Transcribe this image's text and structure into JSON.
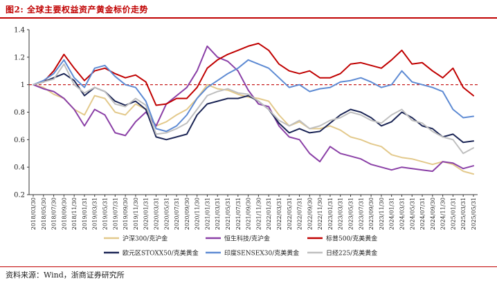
{
  "figure": {
    "title": "图2:  全球主要权益资产黄金标价走势",
    "source": "资料来源：Wind，浙商证券研究所"
  },
  "chart_data": {
    "type": "line",
    "title": "",
    "xlabel": "",
    "ylabel": "",
    "ylim": [
      0.2,
      1.4
    ],
    "yticks": [
      "0.2",
      "0.4",
      "0.6",
      "0.8",
      "1",
      "1.2",
      "1.4"
    ],
    "reference_line": {
      "y": 1.0,
      "style": "dashed",
      "color": "#c00000"
    },
    "grid": false,
    "legend_position": "bottom",
    "x": [
      "2018/03/30",
      "2018/05/30",
      "2018/07/30",
      "2018/09/30",
      "2018/11/30",
      "2019/01/31",
      "2019/03/31",
      "2019/05/31",
      "2019/07/31",
      "2019/09/30",
      "2019/11/30",
      "2020/01/31",
      "2020/03/31",
      "2020/05/31",
      "2020/07/31",
      "2020/09/30",
      "2020/11/30",
      "2021/01/31",
      "2021/03/31",
      "2021/05/31",
      "2021/07/31",
      "2021/09/30",
      "2021/11/30",
      "2022/01/31",
      "2022/03/31",
      "2022/05/31",
      "2022/07/31",
      "2022/09/30",
      "2022/11/30",
      "2023/01/31",
      "2023/03/31",
      "2023/05/31",
      "2023/07/31",
      "2023/09/30",
      "2023/11/30",
      "2024/01/31",
      "2024/03/31",
      "2024/05/31",
      "2024/07/31",
      "2024/09/30",
      "2024/11/30",
      "2025/01/31",
      "2025/03/31",
      "2025/05/31"
    ],
    "series": [
      {
        "name": "沪深300/克沪金",
        "color": "#e3c98b",
        "values": [
          1.0,
          0.98,
          0.93,
          0.9,
          0.82,
          0.78,
          0.92,
          0.9,
          0.8,
          0.78,
          0.86,
          0.82,
          0.7,
          0.73,
          0.78,
          0.82,
          0.9,
          1.0,
          0.97,
          0.96,
          0.93,
          0.91,
          0.9,
          0.88,
          0.78,
          0.7,
          0.73,
          0.68,
          0.68,
          0.7,
          0.67,
          0.62,
          0.6,
          0.57,
          0.55,
          0.49,
          0.47,
          0.46,
          0.44,
          0.42,
          0.44,
          0.42,
          0.37,
          0.35
        ]
      },
      {
        "name": "恒生科技/克沪金",
        "color": "#8a3fa6",
        "values": [
          1.0,
          0.97,
          0.95,
          0.9,
          0.82,
          0.7,
          0.82,
          0.78,
          0.65,
          0.63,
          0.73,
          0.8,
          0.7,
          0.86,
          0.92,
          0.98,
          1.1,
          1.28,
          1.2,
          1.17,
          1.1,
          0.96,
          0.86,
          0.84,
          0.7,
          0.62,
          0.6,
          0.5,
          0.44,
          0.55,
          0.5,
          0.48,
          0.46,
          0.42,
          0.4,
          0.38,
          0.4,
          0.39,
          0.38,
          0.37,
          0.44,
          0.43,
          0.39,
          0.41
        ]
      },
      {
        "name": "标普500/克美黄金",
        "color": "#c00000",
        "values": [
          1.0,
          1.02,
          1.1,
          1.22,
          1.12,
          1.03,
          1.1,
          1.12,
          1.08,
          1.05,
          1.07,
          1.02,
          0.85,
          0.86,
          0.9,
          0.9,
          0.98,
          1.12,
          1.18,
          1.22,
          1.25,
          1.28,
          1.3,
          1.25,
          1.15,
          1.1,
          1.08,
          1.1,
          1.05,
          1.05,
          1.08,
          1.15,
          1.16,
          1.14,
          1.12,
          1.18,
          1.25,
          1.15,
          1.16,
          1.1,
          1.05,
          1.12,
          0.98,
          0.92
        ]
      },
      {
        "name": "欧元区STOXX50/克美黄金",
        "color": "#1b2555",
        "values": [
          1.0,
          1.02,
          1.05,
          1.08,
          1.03,
          0.92,
          0.98,
          0.95,
          0.88,
          0.85,
          0.88,
          0.82,
          0.62,
          0.6,
          0.62,
          0.64,
          0.78,
          0.86,
          0.88,
          0.9,
          0.9,
          0.92,
          0.88,
          0.82,
          0.72,
          0.65,
          0.68,
          0.65,
          0.66,
          0.72,
          0.78,
          0.82,
          0.8,
          0.76,
          0.7,
          0.73,
          0.8,
          0.76,
          0.7,
          0.68,
          0.62,
          0.64,
          0.58,
          0.59
        ]
      },
      {
        "name": "印度SENSEX30/克美黄金",
        "color": "#5d8ad3",
        "values": [
          1.0,
          1.03,
          1.08,
          1.18,
          1.05,
          0.98,
          1.12,
          1.14,
          1.06,
          1.0,
          0.98,
          0.88,
          0.68,
          0.66,
          0.7,
          0.78,
          0.9,
          0.98,
          1.03,
          1.08,
          1.12,
          1.18,
          1.15,
          1.12,
          1.05,
          0.98,
          1.0,
          0.95,
          0.97,
          0.98,
          1.02,
          1.03,
          1.05,
          1.02,
          0.98,
          1.0,
          1.1,
          1.02,
          1.0,
          0.98,
          0.95,
          0.82,
          0.76,
          0.77
        ]
      },
      {
        "name": "日经225/克美黄金",
        "color": "#bfbfbf",
        "values": [
          1.0,
          1.02,
          1.04,
          1.15,
          1.0,
          0.94,
          0.98,
          0.95,
          0.86,
          0.84,
          0.9,
          0.85,
          0.64,
          0.65,
          0.68,
          0.72,
          0.82,
          0.92,
          0.95,
          0.97,
          0.94,
          0.93,
          0.88,
          0.82,
          0.74,
          0.7,
          0.74,
          0.68,
          0.7,
          0.74,
          0.76,
          0.8,
          0.78,
          0.74,
          0.72,
          0.78,
          0.82,
          0.74,
          0.72,
          0.66,
          0.62,
          0.6,
          0.5,
          0.54
        ]
      }
    ]
  }
}
